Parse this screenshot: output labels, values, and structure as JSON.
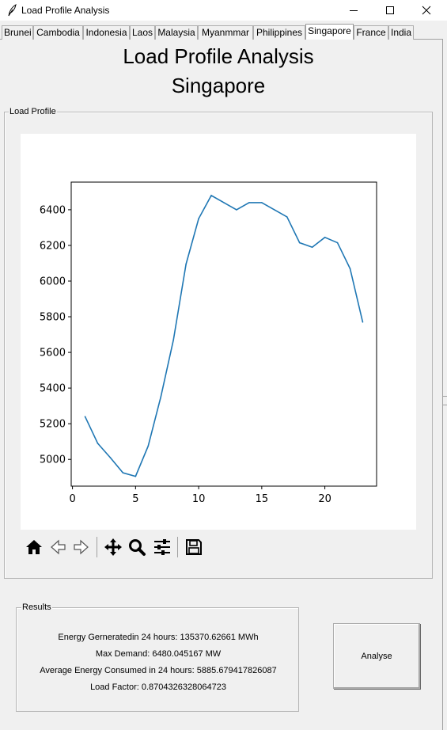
{
  "window": {
    "title": "Load Profile Analysis",
    "controls": {
      "minimize": "minimize-icon",
      "maximize": "maximize-icon",
      "close": "close-icon"
    }
  },
  "tabs": [
    {
      "label": "Brunei",
      "active": false
    },
    {
      "label": "Cambodia",
      "active": false
    },
    {
      "label": "Indonesia",
      "active": false
    },
    {
      "label": "Laos",
      "active": false
    },
    {
      "label": "Malaysia",
      "active": false
    },
    {
      "label": "Myanmmar",
      "active": false
    },
    {
      "label": "Philippines",
      "active": false
    },
    {
      "label": "Singapore",
      "active": true
    },
    {
      "label": "France",
      "active": false
    },
    {
      "label": "India",
      "active": false
    }
  ],
  "main": {
    "heading": "Load Profile Analysis",
    "country": "Singapore"
  },
  "load_profile": {
    "frame_label": "Load Profile"
  },
  "toolbar": {
    "icons": [
      "home-icon",
      "back-icon",
      "forward-icon",
      "pan-icon",
      "zoom-icon",
      "configure-subplots-icon",
      "save-icon"
    ]
  },
  "results": {
    "frame_label": "Results",
    "energy_generated": "Energy Gerneratedin 24 hours: 135370.62661 MWh",
    "max_demand": "Max Demand: 6480.045167 MW",
    "average_energy": "Average Energy Consumed in 24 hours: 5885.679417826087",
    "load_factor": "Load Factor: 0.8704326328064723"
  },
  "analyse_label": "Analyse",
  "colors": {
    "line": "#1f77b4",
    "accent": "#1f77b4"
  },
  "chart_data": {
    "type": "line",
    "title": "",
    "xlabel": "",
    "ylabel": "",
    "x": [
      1,
      2,
      3,
      4,
      5,
      6,
      7,
      8,
      9,
      10,
      11,
      12,
      13,
      14,
      15,
      16,
      17,
      18,
      19,
      20,
      21,
      22,
      23
    ],
    "series": [
      {
        "values": [
          5240,
          5090,
          5010,
          4925,
          4905,
          5075,
          5350,
          5670,
          6095,
          6350,
          6480,
          6440,
          6400,
          6440,
          6440,
          6400,
          6360,
          6215,
          6190,
          6245,
          6215,
          6070,
          5770
        ]
      }
    ],
    "xlim": [
      -0.1,
      24.1
    ],
    "ylim": [
      4850,
      6555
    ],
    "xticks": [
      0,
      5,
      10,
      15,
      20
    ],
    "yticks": [
      5000,
      5200,
      5400,
      5600,
      5800,
      6000,
      6200,
      6400
    ],
    "grid": false,
    "legend": "none"
  }
}
